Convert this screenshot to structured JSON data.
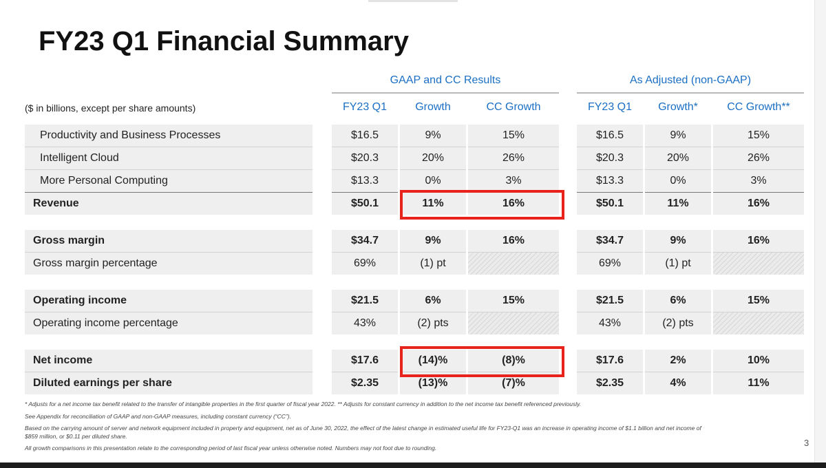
{
  "slide": {
    "title": "FY23 Q1 Financial Summary",
    "page_number": "3",
    "units_note": "($ in billions, except per share amounts)"
  },
  "groups": {
    "gaap": "GAAP and CC Results",
    "adjusted": "As Adjusted (non-GAAP)"
  },
  "columns": [
    "FY23 Q1",
    "Growth",
    "CC Growth",
    "FY23 Q1",
    "Growth*",
    "CC Growth**"
  ],
  "rows": [
    {
      "label": "Productivity and Business Processes",
      "values": [
        "$16.5",
        "9%",
        "15%",
        "$16.5",
        "9%",
        "15%"
      ]
    },
    {
      "label": "Intelligent Cloud",
      "values": [
        "$20.3",
        "20%",
        "26%",
        "$20.3",
        "20%",
        "26%"
      ]
    },
    {
      "label": "More Personal Computing",
      "values": [
        "$13.3",
        "0%",
        "3%",
        "$13.3",
        "0%",
        "3%"
      ]
    },
    {
      "label": "Revenue",
      "values": [
        "$50.1",
        "11%",
        "16%",
        "$50.1",
        "11%",
        "16%"
      ]
    },
    {
      "label": "Gross margin",
      "values": [
        "$34.7",
        "9%",
        "16%",
        "$34.7",
        "9%",
        "16%"
      ]
    },
    {
      "label": "Gross margin percentage",
      "values": [
        "69%",
        "(1) pt",
        "",
        "69%",
        "(1) pt",
        ""
      ]
    },
    {
      "label": "Operating income",
      "values": [
        "$21.5",
        "6%",
        "15%",
        "$21.5",
        "6%",
        "15%"
      ]
    },
    {
      "label": "Operating income percentage",
      "values": [
        "43%",
        "(2) pts",
        "",
        "43%",
        "(2) pts",
        ""
      ]
    },
    {
      "label": "Net income",
      "values": [
        "$17.6",
        "(14)%",
        "(8)%",
        "$17.6",
        "2%",
        "10%"
      ]
    },
    {
      "label": "Diluted earnings per share",
      "values": [
        "$2.35",
        "(13)%",
        "(7)%",
        "$2.35",
        "4%",
        "11%"
      ]
    }
  ],
  "footnotes": [
    "* Adjusts for a net income tax benefit related to the transfer of intangible properties in the first quarter of fiscal year 2022.  ** Adjusts for constant currency in addition to the net income tax benefit referenced previously.",
    "See Appendix for reconciliation of GAAP and non-GAAP measures, including constant currency (“CC”).",
    "Based on the carrying amount of server and network equipment included in property and equipment, net as of June 30, 2022, the effect of the latest change in estimated useful life for FY23-Q1 was an increase in operating income of $1.1 billion and net income of",
    "$859 million, or $0.11 per diluted share.",
    "All growth comparisons in this presentation relate to the corresponding period of last fiscal year unless otherwise noted. Numbers may not foot due to rounding."
  ],
  "colors": {
    "accent_blue": "#1a6fc4",
    "highlight_red": "#e8231c",
    "row_bg": "#efefef"
  }
}
